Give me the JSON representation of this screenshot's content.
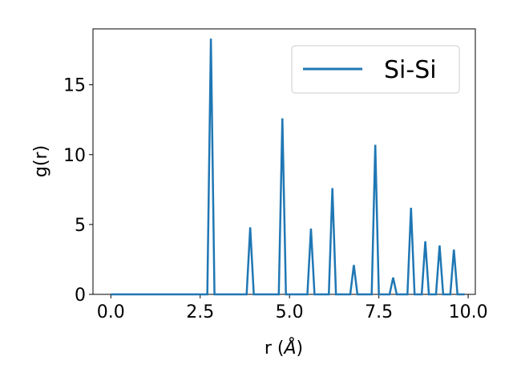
{
  "chart_data": {
    "type": "line",
    "xlabel": "r (",
    "xlabel_unit": "Å",
    "xlabel_close": ")",
    "ylabel": "g(r)",
    "xlim": [
      -0.5,
      10.2
    ],
    "ylim": [
      0,
      19
    ],
    "xticks": [
      0.0,
      2.5,
      5.0,
      7.5,
      10.0
    ],
    "xtick_labels": [
      "0.0",
      "2.5",
      "5.0",
      "7.5",
      "10.0"
    ],
    "yticks": [
      0,
      5,
      10,
      15
    ],
    "ytick_labels": [
      "0",
      "5",
      "10",
      "15"
    ],
    "grid": false,
    "legend_position": "top-right",
    "series": [
      {
        "name": "Si-Si",
        "color": "#1f77b4",
        "x": [
          0.0,
          2.7,
          2.8,
          2.9,
          3.8,
          3.9,
          4.0,
          4.7,
          4.8,
          4.9,
          5.5,
          5.6,
          5.7,
          6.1,
          6.2,
          6.3,
          6.7,
          6.8,
          6.9,
          7.3,
          7.4,
          7.5,
          7.8,
          7.9,
          8.0,
          8.3,
          8.4,
          8.5,
          8.7,
          8.8,
          8.9,
          9.1,
          9.2,
          9.3,
          9.5,
          9.6,
          9.7,
          9.9
        ],
        "y": [
          0,
          0,
          18.3,
          0,
          0,
          4.8,
          0,
          0,
          12.6,
          0,
          0,
          4.7,
          0,
          0,
          7.6,
          0,
          0,
          2.1,
          0,
          0,
          10.7,
          0,
          0,
          1.2,
          0,
          0,
          6.2,
          0,
          0,
          3.8,
          0,
          0,
          3.5,
          0,
          0,
          3.2,
          0,
          0
        ]
      }
    ]
  }
}
